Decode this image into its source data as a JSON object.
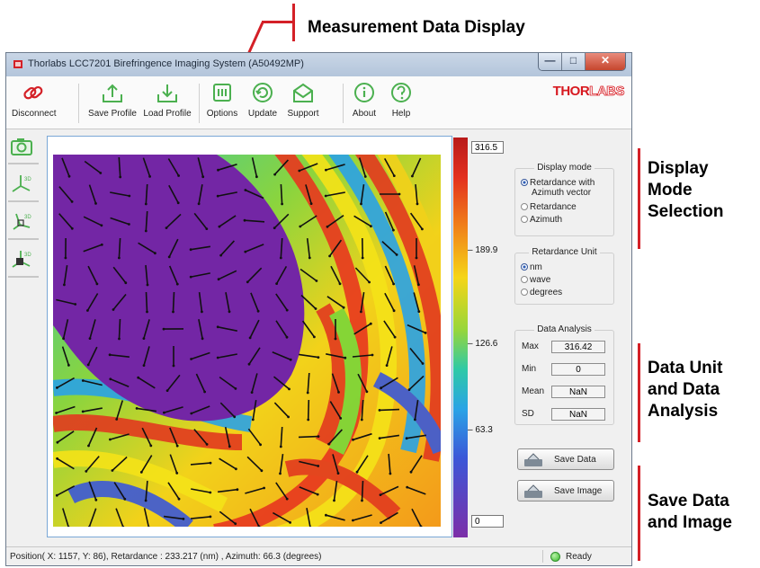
{
  "annotations": {
    "top": "Measurement Data Display",
    "display_mode_lines": [
      "Display",
      "Mode",
      "Selection"
    ],
    "data_unit_lines": [
      "Data Unit",
      "and Data",
      "Analysis"
    ],
    "save_lines": [
      "Save Data",
      "and Image"
    ],
    "color": "#d42027"
  },
  "window": {
    "title": "Thorlabs LCC7201 Birefringence Imaging System (A50492MP)",
    "logo": [
      "THOR",
      "LABS"
    ]
  },
  "toolbar": {
    "disconnect": "Disconnect",
    "save_profile": "Save Profile",
    "load_profile": "Load Profile",
    "options": "Options",
    "update": "Update",
    "support": "Support",
    "about": "About",
    "help": "Help"
  },
  "left_tools": [
    "camera-icon",
    "axes-3d-icon",
    "axes-3d-tilt-icon",
    "cube-3d-icon"
  ],
  "colorbar": {
    "top_value": "316.5",
    "bottom_value": "0",
    "ticks": [
      "189.9",
      "126.6",
      "63.3"
    ],
    "colors": [
      "#b81a1a",
      "#f07f1a",
      "#f5d517",
      "#2ec9a7",
      "#3b58d8",
      "#7c2fa8"
    ]
  },
  "display_mode": {
    "title": "Display mode",
    "options": [
      "Retardance with",
      "Azimuth vector",
      "Retardance",
      "Azimuth"
    ],
    "selected": "Retardance with Azimuth vector"
  },
  "retardance_unit": {
    "title": "Retardance Unit",
    "options": [
      "nm",
      "wave",
      "degrees"
    ],
    "selected": "nm"
  },
  "data_analysis": {
    "title": "Data Analysis",
    "labels": [
      "Max",
      "Min",
      "Mean",
      "SD"
    ],
    "values": [
      "316.42",
      "0",
      "NaN",
      "NaN"
    ]
  },
  "buttons": {
    "save_data": "Save Data",
    "save_image": "Save Image"
  },
  "status": {
    "text": "Position( X: 1157, Y: 86), Retardance : 233.217 (nm) , Azimuth: 66.3 (degrees)",
    "ready": "Ready"
  }
}
